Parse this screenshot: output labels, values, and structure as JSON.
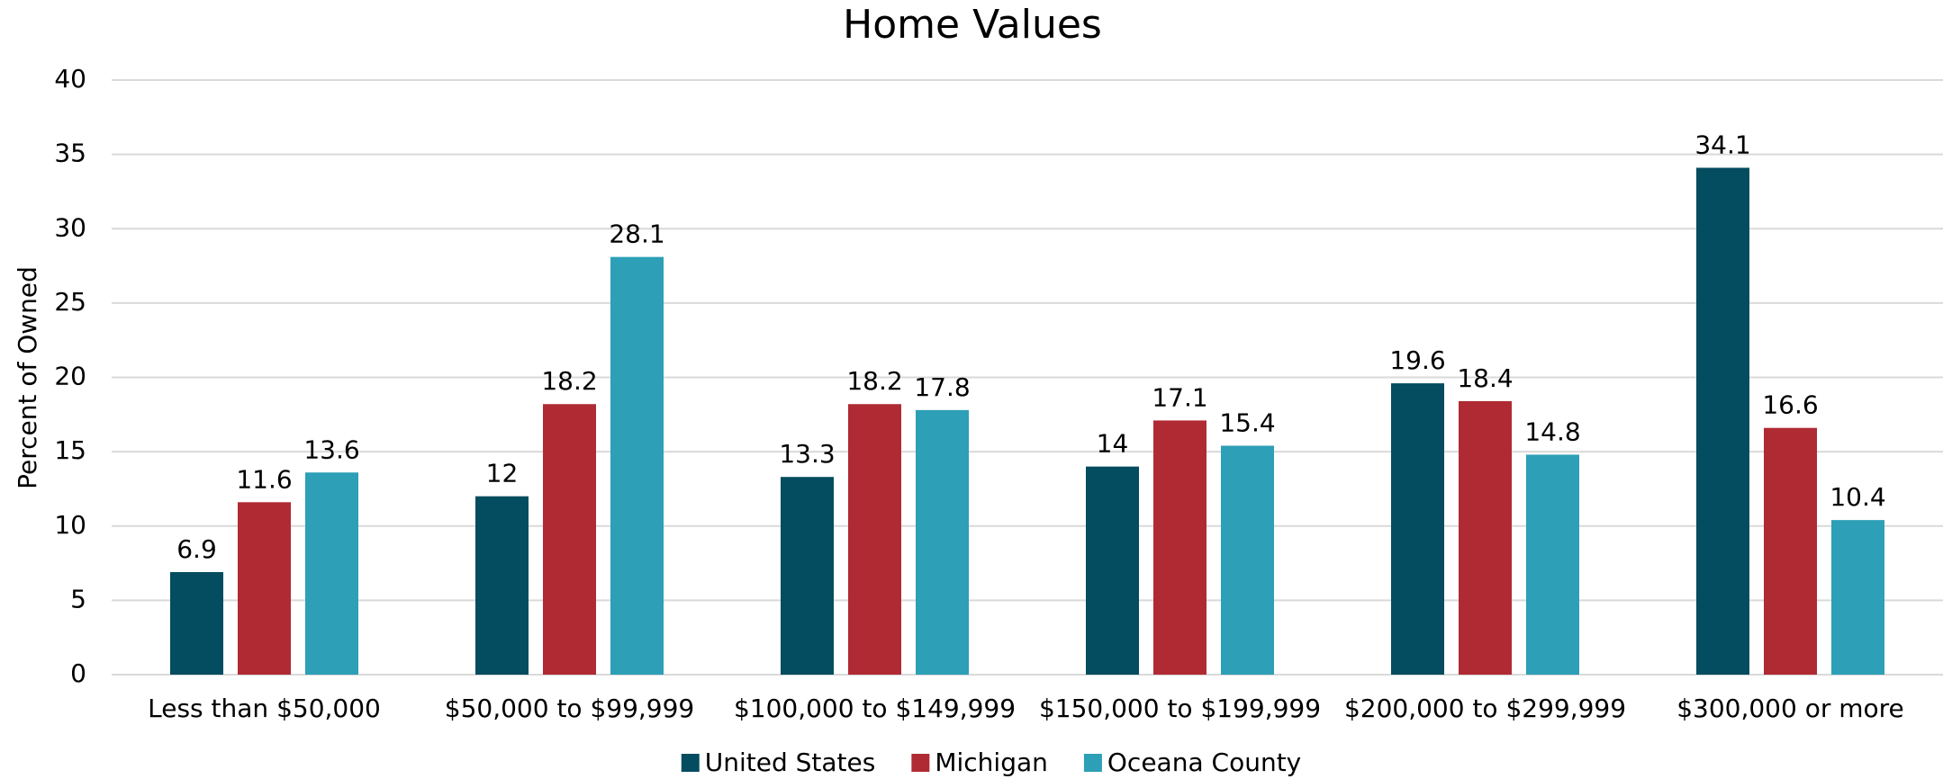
{
  "chart_data": {
    "type": "bar",
    "title": "Home Values",
    "y_label": "Percent of Owned",
    "categories": [
      "Less than $50,000",
      "$50,000 to $99,999",
      "$100,000 to $149,999",
      "$150,000 to $199,999",
      "$200,000 to $299,999",
      "$300,000 or more"
    ],
    "series": [
      {
        "name": "United States",
        "color": "#044c5f",
        "values": [
          6.9,
          12,
          13.3,
          14,
          19.6,
          34.1
        ]
      },
      {
        "name": "Michigan",
        "color": "#b02a34",
        "values": [
          11.6,
          18.2,
          18.2,
          17.1,
          18.4,
          16.6
        ]
      },
      {
        "name": "Oceana County",
        "color": "#2d9fb6",
        "values": [
          13.6,
          28.1,
          17.8,
          15.4,
          14.8,
          10.4
        ]
      }
    ],
    "ylim": [
      0,
      40
    ],
    "yticks": [
      0,
      5,
      10,
      15,
      20,
      25,
      30,
      35,
      40
    ],
    "grid": true,
    "legend": "bottom"
  }
}
